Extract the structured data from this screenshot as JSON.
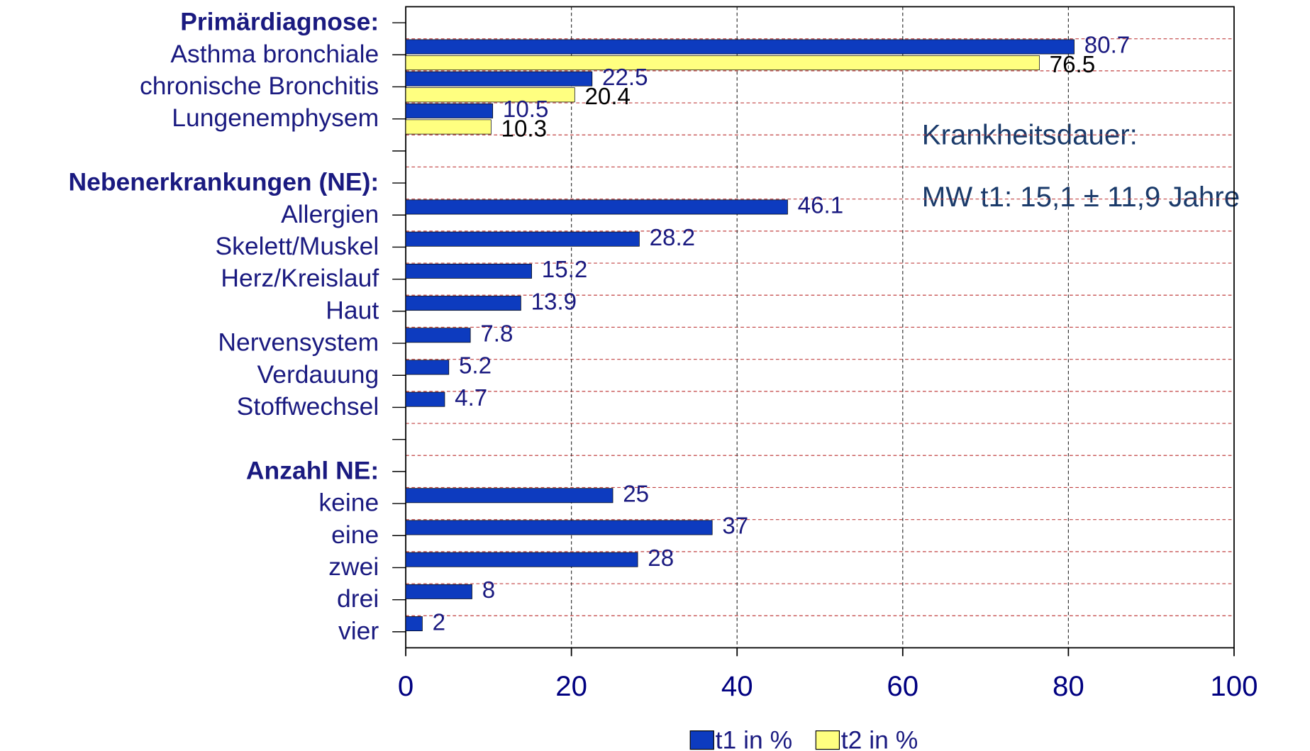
{
  "chart_data": {
    "type": "bar",
    "orientation": "horizontal",
    "categories": [
      "Primärdiagnose:",
      "Asthma bronchiale",
      "chronische Bronchitis",
      "Lungenemphysem",
      null,
      "Nebenerkrankungen (NE):",
      "Allergien",
      "Skelett/Muskel",
      "Herz/Kreislauf",
      "Haut",
      "Nervensystem",
      "Verdauung",
      "Stoffwechsel",
      null,
      "Anzahl NE:",
      "keine",
      "eine",
      "zwei",
      "drei",
      "vier"
    ],
    "series": [
      {
        "name": "t1 in %",
        "color": "#0d3bbf",
        "label_color": "#1a1a80",
        "values": [
          null,
          80.7,
          22.5,
          10.5,
          null,
          null,
          46.1,
          28.2,
          15.2,
          13.9,
          7.8,
          5.2,
          4.7,
          null,
          null,
          25,
          37,
          28,
          8,
          2
        ]
      },
      {
        "name": "t2 in %",
        "color": "#ffff80",
        "label_color": "#000000",
        "values": [
          null,
          76.5,
          20.4,
          10.3,
          null,
          null,
          null,
          null,
          null,
          null,
          null,
          null,
          null,
          null,
          null,
          null,
          null,
          null,
          null,
          null
        ]
      }
    ],
    "xlim": [
      0,
      100
    ],
    "xticks": [
      0,
      20,
      40,
      60,
      80,
      100
    ],
    "grid": true,
    "annotations": [
      "Krankheitsdauer:",
      "MW t1: 15,1 ± 11,9 Jahre"
    ],
    "legend": "bottom"
  }
}
